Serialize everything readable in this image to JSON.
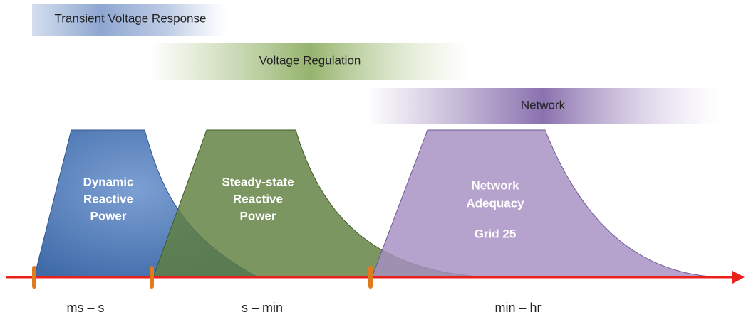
{
  "bands": [
    {
      "label": "Transient Voltage Response"
    },
    {
      "label": "Voltage Regulation"
    },
    {
      "label": "Network"
    }
  ],
  "regions": [
    {
      "lines": [
        "Dynamic",
        "Reactive",
        "Power"
      ]
    },
    {
      "lines": [
        "Steady-state",
        "Reactive",
        "Power"
      ]
    },
    {
      "lines": [
        "Network",
        "Adequacy"
      ],
      "note": "Grid 25"
    }
  ],
  "timescales": [
    "ms – s",
    "s – min",
    "min – hr"
  ]
}
